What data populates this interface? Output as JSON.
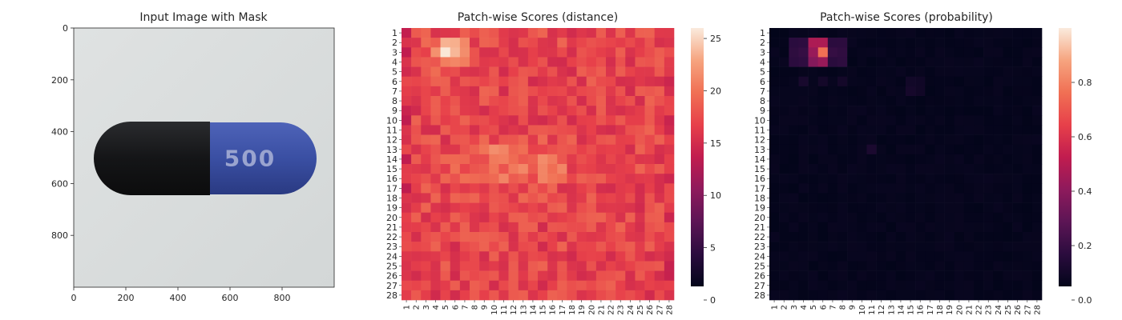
{
  "colors": {
    "capsule_black": "#161719",
    "capsule_blue": "#3a4fa3",
    "background_gray": "#d9dcdc",
    "text_on_capsule": "#9aa4cf"
  },
  "chart_data": [
    {
      "type": "image",
      "title": "Input Image with Mask",
      "image_content": {
        "object": "capsule",
        "imprint": "500",
        "left_half_color": "black",
        "right_half_color": "blue"
      },
      "xticks": [
        "0",
        "200",
        "400",
        "600",
        "800"
      ],
      "yticks": [
        "0",
        "200",
        "400",
        "600",
        "800"
      ],
      "xlim": [
        0,
        1000
      ],
      "ylim": [
        1000,
        0
      ]
    },
    {
      "type": "heatmap",
      "title": "Patch-wise Scores (distance)",
      "rows": 28,
      "cols": 28,
      "row_labels": [
        "1",
        "2",
        "3",
        "4",
        "5",
        "6",
        "7",
        "8",
        "9",
        "10",
        "11",
        "12",
        "13",
        "14",
        "15",
        "16",
        "17",
        "18",
        "19",
        "20",
        "21",
        "22",
        "23",
        "24",
        "25",
        "26",
        "27",
        "28"
      ],
      "col_labels": [
        "1",
        "2",
        "3",
        "4",
        "5",
        "6",
        "7",
        "8",
        "9",
        "10",
        "11",
        "12",
        "13",
        "14",
        "15",
        "16",
        "17",
        "18",
        "19",
        "20",
        "21",
        "22",
        "23",
        "24",
        "25",
        "26",
        "27",
        "28"
      ],
      "colorbar": {
        "min": 0,
        "max": 26,
        "ticks": [
          "0",
          "5",
          "10",
          "15",
          "20",
          "25"
        ]
      },
      "value_description": "Values mostly 14–20; hot spot ~25 around rows 2–4, cols 4–7; warmer band ~19–21 around rows 13–16, cols 8–17.",
      "hotspots": [
        {
          "row": 3,
          "col": 5,
          "value": 25.5
        },
        {
          "row": 13,
          "col": 11,
          "value": 23
        },
        {
          "row": 15,
          "col": 16,
          "value": 22
        }
      ]
    },
    {
      "type": "heatmap",
      "title": "Patch-wise Scores (probability)",
      "rows": 28,
      "cols": 28,
      "row_labels": [
        "1",
        "2",
        "3",
        "4",
        "5",
        "6",
        "7",
        "8",
        "9",
        "10",
        "11",
        "12",
        "13",
        "14",
        "15",
        "16",
        "17",
        "18",
        "19",
        "20",
        "21",
        "22",
        "23",
        "24",
        "25",
        "26",
        "27",
        "28"
      ],
      "col_labels": [
        "1",
        "2",
        "3",
        "4",
        "5",
        "6",
        "7",
        "8",
        "9",
        "10",
        "11",
        "12",
        "13",
        "14",
        "15",
        "16",
        "17",
        "18",
        "19",
        "20",
        "21",
        "22",
        "23",
        "24",
        "25",
        "26",
        "27",
        "28"
      ],
      "colorbar": {
        "min": 0,
        "max": 1,
        "ticks": [
          "0.0",
          "0.2",
          "0.4",
          "0.6",
          "0.8"
        ]
      },
      "value_description": "Near zero everywhere except rows 2–4, cols 3–8.",
      "hotspots": [
        {
          "row": 3,
          "col": 6,
          "value": 0.75
        },
        {
          "row": 2,
          "col": 5,
          "value": 0.45
        },
        {
          "row": 2,
          "col": 6,
          "value": 0.45
        },
        {
          "row": 4,
          "col": 5,
          "value": 0.35
        },
        {
          "row": 4,
          "col": 6,
          "value": 0.4
        },
        {
          "row": 3,
          "col": 5,
          "value": 0.4
        },
        {
          "row": 3,
          "col": 4,
          "value": 0.15
        },
        {
          "row": 3,
          "col": 7,
          "value": 0.15
        }
      ]
    }
  ]
}
